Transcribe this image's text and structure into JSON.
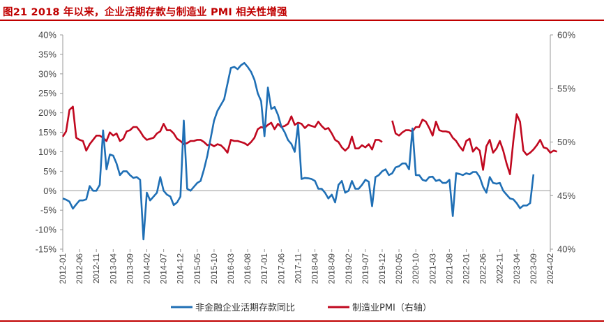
{
  "chart_data": {
    "type": "line",
    "title": "图21  2018 年以来，企业活期存款与制造业 PMI 相关性增强",
    "colors": {
      "series_1": "#1f6fb5",
      "series_2": "#c0081f",
      "title": "#c00000"
    },
    "y_left": {
      "ylim": [
        -15,
        40
      ],
      "ticks": [
        "-15%",
        "-10%",
        "-5%",
        "0%",
        "5%",
        "10%",
        "15%",
        "20%",
        "25%",
        "30%",
        "35%",
        "40%"
      ]
    },
    "y_right": {
      "ylim": [
        40,
        60
      ],
      "ticks": [
        "40%",
        "45%",
        "50%",
        "55%",
        "60%"
      ]
    },
    "x_ticks": [
      "2012-01",
      "2012-06",
      "2012-11",
      "2013-04",
      "2013-09",
      "2014-02",
      "2014-07",
      "2014-12",
      "2015-05",
      "2015-10",
      "2016-03",
      "2016-08",
      "2017-01",
      "2017-06",
      "2017-11",
      "2018-04",
      "2018-09",
      "2019-02",
      "2019-07",
      "2019-12",
      "2020-05",
      "2020-10",
      "2021-03",
      "2021-08",
      "2022-01",
      "2022-06",
      "2022-11",
      "2023-04",
      "2023-09",
      "2024-02"
    ],
    "legend_position": "bottom",
    "series": [
      {
        "name": "非金融企业活期存款同比",
        "axis": "left",
        "start": "2012-01",
        "values": [
          -2,
          -2.3,
          -2.8,
          -4.6,
          -3.5,
          -2.5,
          -2.5,
          -2.2,
          1.2,
          0,
          0,
          1.5,
          15.5,
          5.5,
          9.3,
          9,
          7,
          4,
          5,
          5,
          4,
          3.3,
          3.5,
          2.8,
          -12.5,
          -0.5,
          -2.5,
          -1.5,
          -0.5,
          3.5,
          0,
          -1,
          -1.5,
          -3.7,
          -3,
          -1.5,
          18,
          0.5,
          0,
          1,
          2,
          2.5,
          5.5,
          9,
          13.5,
          18,
          20.5,
          22,
          23.5,
          27.5,
          31.5,
          31.8,
          31.2,
          32.2,
          32.8,
          31.8,
          30.5,
          28.5,
          25,
          23,
          14,
          26.5,
          21,
          21.5,
          19.5,
          16.5,
          15,
          13,
          12,
          10,
          17,
          3,
          3.3,
          3.2,
          3,
          2.5,
          0.5,
          0.5,
          -0.5,
          -2,
          -1,
          -3,
          1.5,
          2.5,
          -0.5,
          0,
          2.5,
          0.5,
          0.5,
          1.5,
          2.8,
          2.3,
          -4,
          3.5,
          4,
          5,
          5.5,
          4,
          4.5,
          6,
          6.3,
          7,
          7,
          5.5,
          16,
          4,
          4,
          2.8,
          2.5,
          3.5,
          3.6,
          2.5,
          2.8,
          2,
          2,
          2.8,
          -6.5,
          4.5,
          4.3,
          4,
          4.5,
          4.2,
          4.8,
          4.8,
          3.5,
          1,
          -0.5,
          3.5,
          2,
          1.8,
          2,
          0,
          -1,
          -2,
          -2.2,
          -3.2,
          -4.5,
          -3.8,
          -3.8,
          -3.2,
          4.2
        ]
      },
      {
        "name": "制造业PMI（右轴）",
        "axis": "right",
        "start": "2012-01",
        "values": [
          50.5,
          51,
          53,
          53.3,
          50.4,
          50.2,
          50.1,
          49.2,
          49.8,
          50.2,
          50.6,
          50.6,
          50.4,
          50.1,
          50.9,
          50.6,
          50.8,
          50.1,
          50.3,
          51,
          51.1,
          51.4,
          51.4,
          51,
          50.5,
          50.2,
          50.3,
          50.4,
          50.8,
          51,
          51.7,
          51.1,
          51.1,
          50.8,
          50.3,
          50.1,
          49.8,
          49.9,
          50.1,
          50.1,
          50.2,
          50.2,
          50,
          49.7,
          49.8,
          49.6,
          49.8,
          49.7,
          49.4,
          49,
          50.2,
          50.1,
          50.1,
          50,
          49.9,
          49.7,
          50,
          50.4,
          51.2,
          51.4,
          51.3,
          51.6,
          51.8,
          51.2,
          51.7,
          51.4,
          51.5,
          51.7,
          52.4,
          51.6,
          51.8,
          51.7,
          51.3,
          51.6,
          51.5,
          51.4,
          51.9,
          51.5,
          51.2,
          51.3,
          50.8,
          50.2,
          50,
          49.5,
          49.2,
          49.5,
          50.5,
          49.4,
          49.4,
          49.7,
          49.5,
          49.8,
          49.3,
          50.2,
          50.2,
          50
        ],
        "gap_then": {
          "start": "2020-03",
          "values": [
            52,
            50.8,
            50.6,
            50.9,
            51.1,
            51.1,
            51,
            51.4,
            51.4,
            52.1,
            51.9,
            51.3,
            50.6,
            51.9,
            51.1,
            51,
            51,
            50.9,
            50.4,
            50.1,
            49.6,
            49.2,
            50.1,
            50.3,
            49.1,
            49.5,
            49.2,
            47.4,
            49.6,
            50.2,
            49,
            49.4,
            50.1,
            49.2,
            48,
            47,
            50.1,
            52.6,
            51.9,
            49.2,
            48.8,
            49,
            49.3,
            49.7,
            50.2,
            49.5,
            49.4,
            49,
            49.2,
            49.1
          ]
        }
      }
    ]
  }
}
